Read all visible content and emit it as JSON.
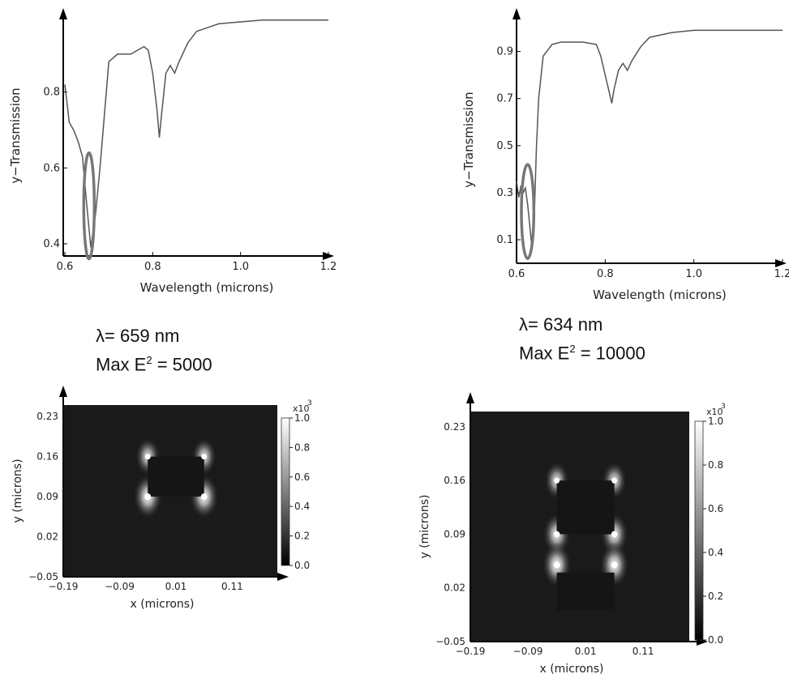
{
  "annotations": {
    "left": {
      "lambda": "λ= 659 nm",
      "max_prefix": "Max E",
      "max_exp": "2",
      "max_suffix": " = 5000"
    },
    "right": {
      "lambda": "λ= 634 nm",
      "max_prefix": "Max E",
      "max_exp": "2",
      "max_suffix": " = 10000"
    }
  },
  "colors": {
    "line": "#555555",
    "axis": "#000000",
    "ellipse": "#777777",
    "field_bg": "#1a1a1a"
  },
  "chart_data": [
    {
      "type": "line",
      "id": "spectrum-left",
      "xlabel": "Wavelength  (microns)",
      "ylabel": "y−Transmission",
      "xlim": [
        0.6,
        1.2
      ],
      "ylim": [
        0.37,
        1.0
      ],
      "xticks": [
        "0.6",
        "0.8",
        "1.0",
        "1.2"
      ],
      "xtick_values": [
        0.6,
        0.8,
        1.0,
        1.2
      ],
      "yticks": [
        "0.4",
        "0.6",
        "0.8"
      ],
      "ytick_values": [
        0.4,
        0.6,
        0.8
      ],
      "highlight": {
        "x": 0.655,
        "y": 0.5,
        "rx": 0.012,
        "ry": 0.14
      },
      "x": [
        0.6,
        0.61,
        0.62,
        0.63,
        0.64,
        0.65,
        0.659,
        0.67,
        0.68,
        0.7,
        0.72,
        0.75,
        0.78,
        0.79,
        0.8,
        0.81,
        0.815,
        0.82,
        0.83,
        0.84,
        0.85,
        0.86,
        0.88,
        0.9,
        0.95,
        1.0,
        1.05,
        1.1,
        1.15,
        1.2
      ],
      "y": [
        0.82,
        0.72,
        0.7,
        0.67,
        0.63,
        0.5,
        0.39,
        0.48,
        0.6,
        0.88,
        0.9,
        0.9,
        0.92,
        0.91,
        0.85,
        0.75,
        0.68,
        0.74,
        0.85,
        0.87,
        0.85,
        0.88,
        0.93,
        0.96,
        0.98,
        0.985,
        0.99,
        0.99,
        0.99,
        0.99
      ]
    },
    {
      "type": "line",
      "id": "spectrum-right",
      "xlabel": "Wavelength  (microns)",
      "ylabel": "y−Transmission",
      "xlim": [
        0.6,
        1.2
      ],
      "ylim": [
        0.0,
        1.05
      ],
      "xticks": [
        "0.6",
        "0.8",
        "1.0",
        "1.2"
      ],
      "xtick_values": [
        0.6,
        0.8,
        1.0,
        1.2
      ],
      "yticks": [
        "0.1",
        "0.3",
        "0.5",
        "0.7",
        "0.9"
      ],
      "ytick_values": [
        0.1,
        0.3,
        0.5,
        0.7,
        0.9
      ],
      "highlight": {
        "x": 0.625,
        "y": 0.22,
        "rx": 0.014,
        "ry": 0.2
      },
      "x": [
        0.6,
        0.605,
        0.61,
        0.615,
        0.62,
        0.625,
        0.634,
        0.64,
        0.645,
        0.65,
        0.66,
        0.68,
        0.7,
        0.72,
        0.75,
        0.78,
        0.79,
        0.8,
        0.81,
        0.815,
        0.82,
        0.83,
        0.84,
        0.85,
        0.86,
        0.88,
        0.9,
        0.95,
        1.0,
        1.05,
        1.1,
        1.15,
        1.2
      ],
      "y": [
        0.35,
        0.28,
        0.33,
        0.3,
        0.32,
        0.25,
        0.08,
        0.2,
        0.5,
        0.7,
        0.88,
        0.93,
        0.94,
        0.94,
        0.94,
        0.93,
        0.88,
        0.8,
        0.72,
        0.68,
        0.74,
        0.82,
        0.85,
        0.82,
        0.86,
        0.92,
        0.96,
        0.98,
        0.99,
        0.99,
        0.99,
        0.99,
        0.99
      ]
    },
    {
      "type": "heatmap",
      "id": "field-left",
      "xlabel": "x  (microns)",
      "ylabel": "y  (microns)",
      "xlim": [
        -0.19,
        0.19
      ],
      "ylim": [
        -0.05,
        0.25
      ],
      "xticks": [
        "−0.19",
        "−0.09",
        "0.01",
        "0.11"
      ],
      "xtick_values": [
        -0.19,
        -0.09,
        0.01,
        0.11
      ],
      "yticks": [
        "−0.05",
        "0.02",
        "0.09",
        "0.16",
        "0.23"
      ],
      "ytick_values": [
        -0.05,
        0.02,
        0.09,
        0.16,
        0.23
      ],
      "colorbar": {
        "label": "x10",
        "exponent": "3",
        "min": 0.0,
        "max": 1.0,
        "ticks": [
          "0.0",
          "0.2",
          "0.4",
          "0.6",
          "0.8",
          "1.0"
        ]
      },
      "blocks": [
        {
          "x0": -0.04,
          "x1": 0.06,
          "y0": 0.09,
          "y1": 0.16
        }
      ],
      "hotspots": [
        {
          "x": -0.04,
          "y": 0.16,
          "strength": 0.7
        },
        {
          "x": 0.06,
          "y": 0.16,
          "strength": 0.7
        },
        {
          "x": -0.04,
          "y": 0.09,
          "strength": 1.0
        },
        {
          "x": 0.06,
          "y": 0.09,
          "strength": 1.0
        }
      ]
    },
    {
      "type": "heatmap",
      "id": "field-right",
      "xlabel": "x  (microns)",
      "ylabel": "y  (microns)",
      "xlim": [
        -0.19,
        0.19
      ],
      "ylim": [
        -0.05,
        0.25
      ],
      "xticks": [
        "−0.19",
        "−0.09",
        "0.01",
        "0.11"
      ],
      "xtick_values": [
        -0.19,
        -0.09,
        0.01,
        0.11
      ],
      "yticks": [
        "−0.05",
        "0.02",
        "0.09",
        "0.16",
        "0.23"
      ],
      "ytick_values": [
        -0.05,
        0.02,
        0.09,
        0.16,
        0.23
      ],
      "colorbar": {
        "label": "x10",
        "exponent": "3",
        "min": 0.0,
        "max": 1.0,
        "ticks": [
          "0.0",
          "0.2",
          "0.4",
          "0.6",
          "0.8",
          "1.0"
        ]
      },
      "blocks": [
        {
          "x0": -0.04,
          "x1": 0.06,
          "y0": 0.09,
          "y1": 0.16
        },
        {
          "x0": -0.04,
          "x1": 0.06,
          "y0": -0.01,
          "y1": 0.04
        }
      ],
      "hotspots": [
        {
          "x": -0.04,
          "y": 0.16,
          "strength": 0.7
        },
        {
          "x": 0.06,
          "y": 0.16,
          "strength": 0.7
        },
        {
          "x": -0.04,
          "y": 0.09,
          "strength": 0.9
        },
        {
          "x": 0.06,
          "y": 0.09,
          "strength": 0.9
        },
        {
          "x": -0.04,
          "y": 0.05,
          "strength": 1.0
        },
        {
          "x": 0.06,
          "y": 0.05,
          "strength": 1.0
        }
      ]
    }
  ]
}
